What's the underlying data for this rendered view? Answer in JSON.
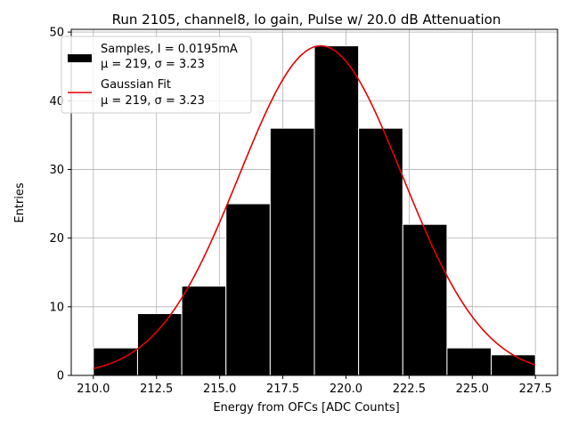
{
  "chart_data": {
    "type": "bar",
    "title": "Run 2105, channel8, lo gain, Pulse w/ 20.0 dB Attenuation",
    "xlabel": "Energy from OFCs [ADC Counts]",
    "ylabel": "Entries",
    "xlim": [
      209.125,
      228.375
    ],
    "ylim": [
      0,
      50.4
    ],
    "xticks": [
      "210.0",
      "212.5",
      "215.0",
      "217.5",
      "220.0",
      "222.5",
      "225.0",
      "227.5"
    ],
    "yticks": [
      "0",
      "10",
      "20",
      "30",
      "40",
      "50"
    ],
    "grid": true,
    "legend_position": "upper-left",
    "bins": [
      {
        "left": 210.0,
        "right": 211.75,
        "count": 4
      },
      {
        "left": 211.75,
        "right": 213.5,
        "count": 9
      },
      {
        "left": 213.5,
        "right": 215.25,
        "count": 13
      },
      {
        "left": 215.25,
        "right": 217.0,
        "count": 25
      },
      {
        "left": 217.0,
        "right": 218.75,
        "count": 36
      },
      {
        "left": 218.75,
        "right": 220.5,
        "count": 48
      },
      {
        "left": 220.5,
        "right": 222.25,
        "count": 36
      },
      {
        "left": 222.25,
        "right": 224.0,
        "count": 22
      },
      {
        "left": 224.0,
        "right": 225.75,
        "count": 4
      },
      {
        "left": 225.75,
        "right": 227.5,
        "count": 3
      }
    ],
    "series": [
      {
        "name": "Samples, I = 0.0195mA",
        "stats": "μ = 219, σ = 3.23",
        "kind": "histogram",
        "color": "#000000"
      },
      {
        "name": "Gaussian Fit",
        "stats": "μ = 219, σ = 3.23",
        "kind": "line",
        "color": "#e60000",
        "mu": 219.0,
        "sigma": 3.23,
        "amplitude": 48.0,
        "x_range": [
          210.0,
          227.5
        ]
      }
    ]
  }
}
